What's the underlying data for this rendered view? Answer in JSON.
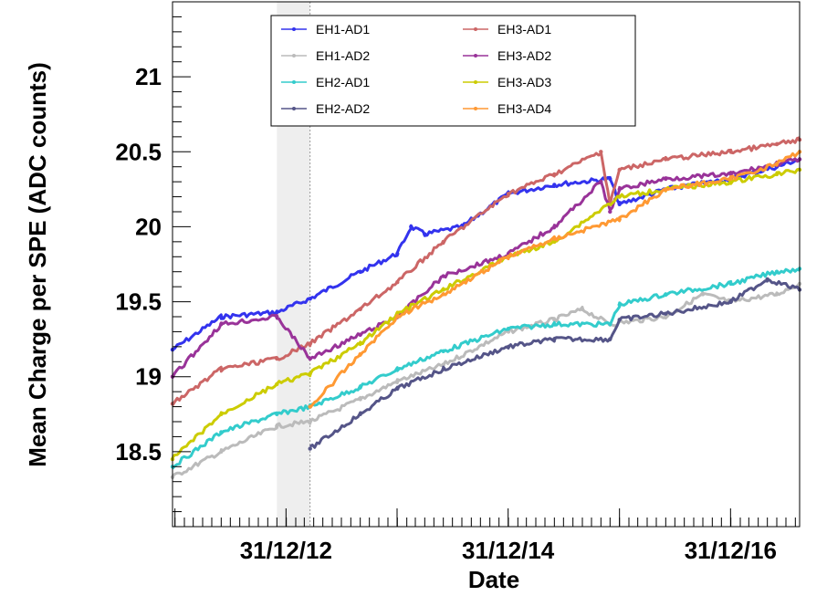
{
  "chart_data": {
    "type": "line",
    "title": "",
    "xlabel": "Date",
    "ylabel": "Mean Charge per SPE (ADC counts)",
    "x_ticks": [
      "31/12/12",
      "31/12/14",
      "31/12/16"
    ],
    "y_ticks": [
      "18.5",
      "19",
      "19.5",
      "20",
      "20.5",
      "21"
    ],
    "xlim": [
      "2011-12-24",
      "2017-08-15"
    ],
    "ylim": [
      18.0,
      21.5
    ],
    "grid": false,
    "legend_position": "top-left (inside plot)",
    "shaded_gap": [
      "2012-12-01",
      "2013-03-20"
    ],
    "series": [
      {
        "name": "EH1-AD1",
        "color": "#3333ee",
        "x": [
          "2011-12-24",
          "2012-06-01",
          "2012-12-01",
          "2013-03-20",
          "2013-09-01",
          "2014-01-01",
          "2014-02-15",
          "2014-04-01",
          "2014-08-01",
          "2015-01-01",
          "2015-06-01",
          "2015-12-01",
          "2016-01-01",
          "2016-06-01",
          "2017-01-01",
          "2017-06-01",
          "2017-08-15"
        ],
        "y": [
          19.18,
          19.4,
          19.43,
          19.52,
          19.7,
          19.82,
          20.0,
          19.95,
          20.0,
          20.22,
          20.28,
          20.32,
          20.15,
          20.25,
          20.32,
          20.4,
          20.45
        ]
      },
      {
        "name": "EH1-AD2",
        "color": "#bbbbbb",
        "x": [
          "2011-12-24",
          "2012-06-01",
          "2012-12-01",
          "2013-03-20",
          "2013-09-01",
          "2014-01-01",
          "2014-06-01",
          "2015-01-01",
          "2015-06-01",
          "2015-09-01",
          "2015-12-01",
          "2016-06-01",
          "2016-10-01",
          "2017-01-01",
          "2017-06-01",
          "2017-08-15"
        ],
        "y": [
          18.33,
          18.5,
          18.67,
          18.7,
          18.85,
          18.97,
          19.08,
          19.3,
          19.38,
          19.45,
          19.35,
          19.4,
          19.55,
          19.5,
          19.55,
          19.62
        ]
      },
      {
        "name": "EH2-AD1",
        "color": "#33cccc",
        "x": [
          "2011-12-24",
          "2012-06-01",
          "2012-12-01",
          "2013-03-20",
          "2013-09-01",
          "2014-01-01",
          "2014-06-01",
          "2015-01-01",
          "2015-06-01",
          "2015-12-01",
          "2016-01-01",
          "2016-06-01",
          "2017-01-01",
          "2017-06-01",
          "2017-08-15"
        ],
        "y": [
          18.4,
          18.63,
          18.75,
          18.8,
          18.93,
          19.05,
          19.17,
          19.32,
          19.35,
          19.35,
          19.48,
          19.55,
          19.62,
          19.7,
          19.72
        ]
      },
      {
        "name": "EH2-AD2",
        "color": "#555588",
        "x": [
          "2013-03-20",
          "2013-09-01",
          "2014-01-01",
          "2014-06-01",
          "2015-01-01",
          "2015-06-01",
          "2015-12-01",
          "2016-01-01",
          "2016-06-01",
          "2017-01-01",
          "2017-05-01",
          "2017-08-15"
        ],
        "y": [
          18.52,
          18.75,
          18.92,
          19.05,
          19.2,
          19.25,
          19.25,
          19.38,
          19.42,
          19.5,
          19.65,
          19.58
        ]
      },
      {
        "name": "EH3-AD1",
        "color": "#cc6666",
        "x": [
          "2011-12-24",
          "2012-06-01",
          "2012-12-01",
          "2013-03-20",
          "2013-09-01",
          "2014-01-01",
          "2014-06-01",
          "2015-01-01",
          "2015-06-01",
          "2015-11-01",
          "2015-12-01",
          "2016-01-01",
          "2016-06-01",
          "2017-01-01",
          "2017-06-01",
          "2017-08-15"
        ],
        "y": [
          18.82,
          19.05,
          19.12,
          19.22,
          19.45,
          19.63,
          19.9,
          20.22,
          20.35,
          20.5,
          20.15,
          20.38,
          20.45,
          20.5,
          20.55,
          20.58
        ]
      },
      {
        "name": "EH3-AD2",
        "color": "#993399",
        "x": [
          "2011-12-24",
          "2012-06-01",
          "2012-12-01",
          "2013-03-20",
          "2013-09-01",
          "2014-01-01",
          "2014-06-01",
          "2015-01-01",
          "2015-06-01",
          "2015-11-01",
          "2015-12-01",
          "2016-01-01",
          "2016-06-01",
          "2017-01-01",
          "2017-06-01",
          "2017-08-15"
        ],
        "y": [
          19.0,
          19.35,
          19.4,
          19.12,
          19.28,
          19.4,
          19.67,
          19.82,
          20.0,
          20.3,
          20.1,
          20.25,
          20.32,
          20.35,
          20.42,
          20.45
        ]
      },
      {
        "name": "EH3-AD3",
        "color": "#cccc00",
        "x": [
          "2011-12-24",
          "2012-06-01",
          "2012-12-01",
          "2013-03-20",
          "2013-09-01",
          "2014-01-01",
          "2014-06-01",
          "2015-01-01",
          "2015-06-01",
          "2016-01-01",
          "2016-06-01",
          "2017-01-01",
          "2017-06-01",
          "2017-08-15"
        ],
        "y": [
          18.45,
          18.75,
          18.95,
          19.02,
          19.22,
          19.42,
          19.58,
          19.8,
          19.9,
          20.2,
          20.25,
          20.3,
          20.35,
          20.38
        ]
      },
      {
        "name": "EH3-AD4",
        "color": "#ff9933",
        "x": [
          "2013-03-20",
          "2013-09-01",
          "2014-01-01",
          "2014-06-01",
          "2015-01-01",
          "2015-06-01",
          "2016-01-01",
          "2016-06-01",
          "2017-01-01",
          "2017-06-01",
          "2017-08-15"
        ],
        "y": [
          18.8,
          19.15,
          19.4,
          19.55,
          19.8,
          19.92,
          20.05,
          20.25,
          20.32,
          20.42,
          20.5
        ]
      }
    ]
  }
}
